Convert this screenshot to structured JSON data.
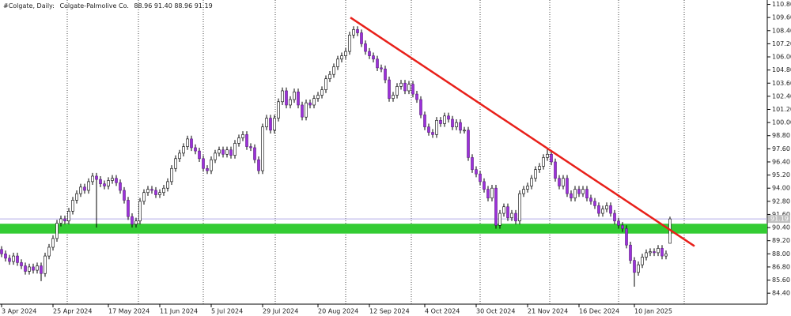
{
  "chart_data": {
    "type": "candlestick",
    "symbol": "#Colgate, Daily:",
    "title": "Colgate-Palmolive Co.",
    "header_values": [
      "88.96",
      "91.40",
      "88.96",
      "91.19"
    ],
    "up_color": "#ffffff",
    "down_color": "#9b30d9",
    "open": [
      88.4,
      88.0,
      87.6,
      87.3,
      87.8,
      87.2,
      86.9,
      86.4,
      86.8,
      86.5,
      86.9,
      86.2,
      87.8,
      88.6,
      89.4,
      90.8,
      91.2,
      91.0,
      91.9,
      92.9,
      93.5,
      94.1,
      93.8,
      94.6,
      95.1,
      94.8,
      94.4,
      94.2,
      94.7,
      94.9,
      94.5,
      93.8,
      92.9,
      91.4,
      90.7,
      91.0,
      92.8,
      93.6,
      93.9,
      93.8,
      93.4,
      93.6,
      94.0,
      94.6,
      95.8,
      96.7,
      97.2,
      97.8,
      98.5,
      97.7,
      97.4,
      96.7,
      95.8,
      95.6,
      96.6,
      97.2,
      97.5,
      97.1,
      97.5,
      97.0,
      98.1,
      98.6,
      98.9,
      97.8,
      97.7,
      96.6,
      95.6,
      99.6,
      100.4,
      99.3,
      100.4,
      101.9,
      102.9,
      101.6,
      102.1,
      102.8,
      101.6,
      100.5,
      101.8,
      101.6,
      102.2,
      102.5,
      103.0,
      104.0,
      104.4,
      105.1,
      105.8,
      106.1,
      106.5,
      108.0,
      108.5,
      108.2,
      107.2,
      106.5,
      106.1,
      105.8,
      105.0,
      104.9,
      103.9,
      102.2,
      102.5,
      103.3,
      103.6,
      102.9,
      103.5,
      102.6,
      102.1,
      100.7,
      99.6,
      99.1,
      98.9,
      100.2,
      99.9,
      100.6,
      100.3,
      99.6,
      100.0,
      99.3,
      99.3,
      96.8,
      95.7,
      95.3,
      94.6,
      93.9,
      93.1,
      94.0,
      90.6,
      91.7,
      92.3,
      91.3,
      91.7,
      91.0,
      93.5,
      93.9,
      94.2,
      94.9,
      95.7,
      96.0,
      96.8,
      97.1,
      96.4,
      94.9,
      94.2,
      94.9,
      93.5,
      93.1,
      93.9,
      93.5,
      93.9,
      93.1,
      92.8,
      92.4,
      91.7,
      92.1,
      92.4,
      91.7,
      91.0,
      90.6,
      90.3,
      88.8,
      87.4,
      86.3,
      87.0,
      87.7,
      88.1,
      88.2,
      88.1,
      88.5,
      87.8,
      88.96
    ],
    "high": [
      88.7,
      88.3,
      87.9,
      88.1,
      88.1,
      87.5,
      87.2,
      87.1,
      87.1,
      87.2,
      87.2,
      88.1,
      88.9,
      89.7,
      91.1,
      91.5,
      91.5,
      92.2,
      93.2,
      93.8,
      94.4,
      94.4,
      94.9,
      95.4,
      95.4,
      95.1,
      94.7,
      95.0,
      95.2,
      95.2,
      94.8,
      94.1,
      93.2,
      91.7,
      91.3,
      93.1,
      93.9,
      94.2,
      94.2,
      94.1,
      93.9,
      94.3,
      94.9,
      96.1,
      97.0,
      97.5,
      98.1,
      98.8,
      98.8,
      98.0,
      97.7,
      97.0,
      96.1,
      96.9,
      97.5,
      97.8,
      97.8,
      97.8,
      97.8,
      98.4,
      98.9,
      99.2,
      99.2,
      98.1,
      98.0,
      96.9,
      99.9,
      100.7,
      100.7,
      100.7,
      102.2,
      103.2,
      103.2,
      102.4,
      103.1,
      103.1,
      101.9,
      102.1,
      102.1,
      102.5,
      102.8,
      103.3,
      104.3,
      104.7,
      105.4,
      106.1,
      106.4,
      106.8,
      108.3,
      108.8,
      108.8,
      108.5,
      107.5,
      106.8,
      106.4,
      106.1,
      105.3,
      105.2,
      104.2,
      102.8,
      103.6,
      103.9,
      103.9,
      103.8,
      103.8,
      102.9,
      102.4,
      101.0,
      99.9,
      99.4,
      100.5,
      100.5,
      100.9,
      100.9,
      100.6,
      100.3,
      100.3,
      99.6,
      99.6,
      97.1,
      96.0,
      95.6,
      94.9,
      94.2,
      94.3,
      94.3,
      92.0,
      92.6,
      92.6,
      92.0,
      92.0,
      93.8,
      94.2,
      94.5,
      95.2,
      96.0,
      96.3,
      97.1,
      97.6,
      97.4,
      96.7,
      95.2,
      95.2,
      95.2,
      93.8,
      94.2,
      94.2,
      94.2,
      94.2,
      93.4,
      93.1,
      92.7,
      92.4,
      92.7,
      92.7,
      92.0,
      91.3,
      90.9,
      90.6,
      89.1,
      87.7,
      87.3,
      88.0,
      88.4,
      88.5,
      88.5,
      88.8,
      88.8,
      88.3,
      91.4
    ],
    "low": [
      87.7,
      87.3,
      87.0,
      87.0,
      86.9,
      86.6,
      86.1,
      86.1,
      86.2,
      86.2,
      85.5,
      85.9,
      87.5,
      88.3,
      89.1,
      90.5,
      90.7,
      90.7,
      91.6,
      92.6,
      93.2,
      93.5,
      93.5,
      94.3,
      90.4,
      94.1,
      93.9,
      93.9,
      94.4,
      94.2,
      93.5,
      92.6,
      91.1,
      90.4,
      90.4,
      90.7,
      92.5,
      93.3,
      93.5,
      93.1,
      93.1,
      93.3,
      93.7,
      94.3,
      95.5,
      96.4,
      96.9,
      97.5,
      97.4,
      97.1,
      96.4,
      95.5,
      95.3,
      95.3,
      96.3,
      96.9,
      96.8,
      96.8,
      96.7,
      96.7,
      97.8,
      98.3,
      97.5,
      97.4,
      96.3,
      95.3,
      95.3,
      99.3,
      99.0,
      99.0,
      100.1,
      101.6,
      101.3,
      101.3,
      101.8,
      101.3,
      100.2,
      100.2,
      101.3,
      101.3,
      101.9,
      102.2,
      102.7,
      103.7,
      104.1,
      104.8,
      105.5,
      105.8,
      106.2,
      107.7,
      107.9,
      106.9,
      106.2,
      105.8,
      105.5,
      104.7,
      104.6,
      103.6,
      101.9,
      101.9,
      102.2,
      103.0,
      102.6,
      102.6,
      102.3,
      101.8,
      100.4,
      99.3,
      98.8,
      98.6,
      98.6,
      99.6,
      99.6,
      100.0,
      99.3,
      99.3,
      99.0,
      99.0,
      96.5,
      95.4,
      95.0,
      94.3,
      93.6,
      92.8,
      92.8,
      90.3,
      90.3,
      91.4,
      91.0,
      91.0,
      90.7,
      90.7,
      93.2,
      93.6,
      93.9,
      94.6,
      95.4,
      95.7,
      96.5,
      96.1,
      94.6,
      93.9,
      93.9,
      93.2,
      92.8,
      92.8,
      93.2,
      93.2,
      92.8,
      92.5,
      92.1,
      91.4,
      91.4,
      91.8,
      91.4,
      90.7,
      90.3,
      90.0,
      88.5,
      87.1,
      85.0,
      86.0,
      86.7,
      87.4,
      87.8,
      87.8,
      87.8,
      87.5,
      87.5,
      88.96
    ],
    "close": [
      88.0,
      87.6,
      87.3,
      87.8,
      87.2,
      86.9,
      86.4,
      86.8,
      86.5,
      86.9,
      86.2,
      87.8,
      88.6,
      89.4,
      90.8,
      91.2,
      91.0,
      91.9,
      92.9,
      93.5,
      94.1,
      93.8,
      94.6,
      95.1,
      94.8,
      94.4,
      94.2,
      94.7,
      94.9,
      94.5,
      93.8,
      92.9,
      91.4,
      90.7,
      91.0,
      92.8,
      93.6,
      93.9,
      93.8,
      93.4,
      93.6,
      94.0,
      94.6,
      95.8,
      96.7,
      97.2,
      97.8,
      98.5,
      97.7,
      97.4,
      96.7,
      95.8,
      95.6,
      96.6,
      97.2,
      97.5,
      97.1,
      97.5,
      97.0,
      98.1,
      98.6,
      98.9,
      97.8,
      97.7,
      96.6,
      95.6,
      99.6,
      100.4,
      99.3,
      100.4,
      101.9,
      102.9,
      101.6,
      102.1,
      102.8,
      101.6,
      100.5,
      101.8,
      101.6,
      102.2,
      102.5,
      103.0,
      104.0,
      104.4,
      105.1,
      105.8,
      106.1,
      106.5,
      108.0,
      108.5,
      108.2,
      107.2,
      106.5,
      106.1,
      105.8,
      105.0,
      104.9,
      103.9,
      102.2,
      102.5,
      103.3,
      103.6,
      102.9,
      103.5,
      102.6,
      102.1,
      100.7,
      99.6,
      99.1,
      98.9,
      100.2,
      99.9,
      100.6,
      100.3,
      99.6,
      100.0,
      99.3,
      99.3,
      96.8,
      95.7,
      95.3,
      94.6,
      93.9,
      93.1,
      94.0,
      90.6,
      91.7,
      92.3,
      91.3,
      91.7,
      91.0,
      93.5,
      93.9,
      94.2,
      94.9,
      95.7,
      96.0,
      96.8,
      97.1,
      96.4,
      94.9,
      94.2,
      94.9,
      93.5,
      93.1,
      93.9,
      93.5,
      93.9,
      93.1,
      92.8,
      92.4,
      91.7,
      92.1,
      92.4,
      91.7,
      91.0,
      90.6,
      90.3,
      88.8,
      87.4,
      86.3,
      87.0,
      87.7,
      88.1,
      88.2,
      88.1,
      88.5,
      87.8,
      88.0,
      91.19
    ],
    "xlim": [
      -0.4,
      193.6
    ],
    "xticks": [
      {
        "value": 0,
        "label": "3 Apr 2024"
      },
      {
        "value": 13,
        "label": "25 Apr 2024"
      },
      {
        "value": 27,
        "label": "17 May 2024"
      },
      {
        "value": 40,
        "label": "11 Jun 2024"
      },
      {
        "value": 53,
        "label": "5 Jul 2024"
      },
      {
        "value": 66,
        "label": "29 Jul 2024"
      },
      {
        "value": 80,
        "label": "20 Aug 2024"
      },
      {
        "value": 93,
        "label": "12 Sep 2024"
      },
      {
        "value": 107,
        "label": "4 Oct 2024"
      },
      {
        "value": 120,
        "label": "30 Oct 2024"
      },
      {
        "value": 133,
        "label": "21 Nov 2024"
      },
      {
        "value": 146,
        "label": "16 Dec 2024"
      },
      {
        "value": 160,
        "label": "10 Jan 2025"
      }
    ],
    "ylim": [
      83.4,
      111.2
    ],
    "yticks": [
      {
        "value": 84.4,
        "label": "84.40"
      },
      {
        "value": 85.6,
        "label": "85.60"
      },
      {
        "value": 86.8,
        "label": "86.80"
      },
      {
        "value": 88.0,
        "label": "88.00"
      },
      {
        "value": 89.2,
        "label": "89.20"
      },
      {
        "value": 90.4,
        "label": "90.40"
      },
      {
        "value": 91.6,
        "label": "91.60"
      },
      {
        "value": 92.8,
        "label": "92.80"
      },
      {
        "value": 94.0,
        "label": "94.00"
      },
      {
        "value": 95.2,
        "label": "95.20"
      },
      {
        "value": 96.4,
        "label": "96.40"
      },
      {
        "value": 97.6,
        "label": "97.60"
      },
      {
        "value": 98.8,
        "label": "98.80"
      },
      {
        "value": 100.0,
        "label": "100.00"
      },
      {
        "value": 101.2,
        "label": "101.20"
      },
      {
        "value": 102.4,
        "label": "102.40"
      },
      {
        "value": 103.6,
        "label": "103.60"
      },
      {
        "value": 104.8,
        "label": "104.80"
      },
      {
        "value": 106.0,
        "label": "106.00"
      },
      {
        "value": 107.2,
        "label": "107.20"
      },
      {
        "value": 108.4,
        "label": "108.40"
      },
      {
        "value": 109.6,
        "label": "109.60"
      },
      {
        "value": 110.8,
        "label": "110.80"
      }
    ],
    "current_price": 91.19,
    "current_price_color": "#b4aee6",
    "zone": {
      "low": 89.85,
      "high": 90.75,
      "color": "#33cc33"
    },
    "trendline": {
      "x": [
        88.2,
        175.2
      ],
      "y": [
        109.6,
        88.7
      ],
      "color": "#e8201a"
    }
  }
}
